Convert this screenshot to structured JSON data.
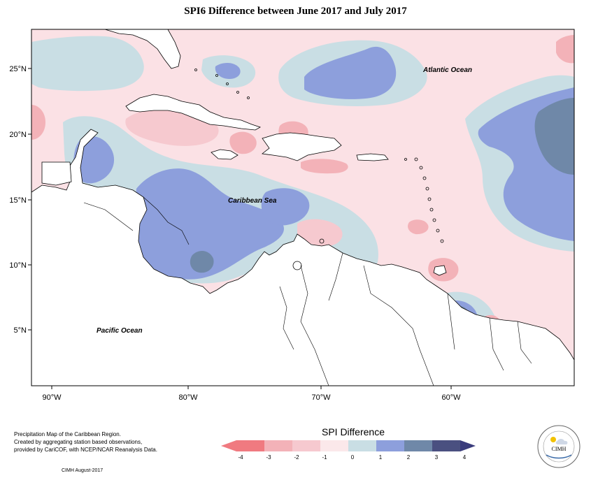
{
  "title": "SPI6 Difference between June 2017 and July 2017",
  "map": {
    "x_ticks": [
      "90°W",
      "80°W",
      "70°W",
      "60°W"
    ],
    "y_ticks": [
      "25°N",
      "20°N",
      "15°N",
      "10°N",
      "5°N"
    ],
    "labels": {
      "atlantic": "Atlantic Ocean",
      "caribbean": "Caribbean Sea",
      "pacific": "Pacific Ocean"
    },
    "colors": {
      "neg4": "#f07a80",
      "neg3": "#f3b2b8",
      "neg2": "#f6c9cf",
      "neg1": "#fbe1e5",
      "zero": "#fdf3f4",
      "pos1": "#c9dee4",
      "pos2": "#8d9fdc",
      "pos3": "#6f88a8",
      "pos4": "#42457e",
      "land": "#ffffff",
      "border": "#000000"
    }
  },
  "credits": {
    "line1": "Precipitation Map of the Caribbean Region.",
    "line2": "Created by aggregating station based observations,",
    "line3": "provided by CariCOF, with NCEP/NCAR Reanalysis Data.",
    "footer": "CIMH August-2017"
  },
  "legend": {
    "title": "SPI Difference",
    "tick_labels": [
      "-4",
      "-3",
      "-2",
      "-1",
      "0",
      "1",
      "2",
      "3",
      "4"
    ],
    "bins": [
      {
        "from": -4,
        "to": -3,
        "color": "#f07a80"
      },
      {
        "from": -3,
        "to": -2,
        "color": "#f3b2b8"
      },
      {
        "from": -2,
        "to": -1,
        "color": "#f6c9cf"
      },
      {
        "from": -1,
        "to": 0,
        "color": "#fbe8ea"
      },
      {
        "from": 0,
        "to": 1,
        "color": "#c9dee4"
      },
      {
        "from": 1,
        "to": 2,
        "color": "#8d9fdc"
      },
      {
        "from": 2,
        "to": 3,
        "color": "#6f88a8"
      },
      {
        "from": 3,
        "to": 4,
        "color": "#4a5080"
      }
    ],
    "extend_low_color": "#f07a80",
    "extend_high_color": "#3a3c7c"
  },
  "logo": {
    "text": "CIMH"
  }
}
